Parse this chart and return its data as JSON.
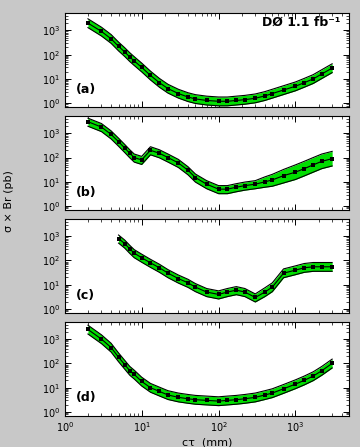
{
  "title_text": "DØ 1.1 fb⁻¹",
  "xlabel": "cτ  (mm)",
  "ylabel": "σ × Br (pb)",
  "xlim": [
    1,
    5000
  ],
  "panels": [
    "(a)",
    "(b)",
    "(c)",
    "(d)"
  ],
  "green_color": "#00dd00",
  "line_color": "#000000",
  "bg_color": "#c8c8c8",
  "plot_bg": "#ffffff",
  "panel_a": {
    "ylim": [
      0.7,
      5000
    ],
    "x": [
      2,
      3,
      4,
      5,
      6,
      7,
      8,
      10,
      13,
      17,
      22,
      30,
      40,
      50,
      70,
      100,
      130,
      170,
      220,
      300,
      400,
      500,
      700,
      1000,
      1300,
      1700,
      2200,
      3000
    ],
    "y": [
      2000,
      900,
      450,
      220,
      130,
      80,
      55,
      30,
      14,
      7,
      4,
      2.5,
      1.8,
      1.5,
      1.3,
      1.2,
      1.2,
      1.3,
      1.4,
      1.6,
      2.0,
      2.5,
      3.5,
      5,
      7,
      10,
      16,
      28
    ],
    "band_factor_up": [
      1.5,
      1.5,
      1.5,
      1.5,
      1.5,
      1.5,
      1.5,
      1.5,
      1.5,
      1.5,
      1.5,
      1.5,
      1.5,
      1.5,
      1.5,
      1.5,
      1.5,
      1.5,
      1.5,
      1.5,
      1.5,
      1.5,
      1.5,
      1.5,
      1.5,
      1.5,
      1.5,
      1.5
    ],
    "band_factor_dn": [
      0.65,
      0.65,
      0.65,
      0.65,
      0.65,
      0.65,
      0.65,
      0.65,
      0.65,
      0.65,
      0.65,
      0.65,
      0.65,
      0.65,
      0.65,
      0.65,
      0.65,
      0.65,
      0.65,
      0.65,
      0.65,
      0.65,
      0.65,
      0.65,
      0.65,
      0.65,
      0.65,
      0.65
    ]
  },
  "panel_b": {
    "ylim": [
      0.7,
      5000
    ],
    "x": [
      2,
      3,
      4,
      5,
      6,
      7,
      8,
      10,
      13,
      17,
      22,
      30,
      40,
      50,
      70,
      100,
      130,
      170,
      220,
      300,
      400,
      500,
      700,
      1000,
      1300,
      1700,
      2200,
      3000
    ],
    "y": [
      3000,
      1800,
      900,
      450,
      250,
      150,
      100,
      80,
      200,
      150,
      100,
      60,
      30,
      15,
      8,
      5,
      5,
      6,
      7,
      8,
      10,
      12,
      18,
      25,
      35,
      50,
      70,
      90
    ],
    "band_factor_up": [
      1.4,
      1.4,
      1.4,
      1.4,
      1.4,
      1.4,
      1.4,
      1.4,
      1.4,
      1.4,
      1.4,
      1.4,
      1.4,
      1.4,
      1.4,
      1.4,
      1.4,
      1.4,
      1.4,
      1.4,
      1.6,
      1.7,
      1.8,
      2.0,
      2.0,
      2.0,
      2.0,
      2.0
    ],
    "band_factor_dn": [
      0.65,
      0.65,
      0.65,
      0.65,
      0.65,
      0.65,
      0.65,
      0.65,
      0.65,
      0.65,
      0.65,
      0.65,
      0.65,
      0.65,
      0.65,
      0.65,
      0.65,
      0.65,
      0.65,
      0.65,
      0.6,
      0.55,
      0.5,
      0.5,
      0.5,
      0.5,
      0.5,
      0.5
    ]
  },
  "panel_c": {
    "ylim": [
      0.7,
      5000
    ],
    "x": [
      5,
      6,
      7,
      8,
      10,
      13,
      17,
      22,
      30,
      40,
      50,
      70,
      100,
      130,
      170,
      220,
      300,
      400,
      500,
      700,
      1000,
      1300,
      1700,
      2200,
      3000
    ],
    "y": [
      800,
      500,
      300,
      200,
      130,
      80,
      50,
      30,
      18,
      12,
      8,
      5,
      4,
      5,
      6,
      5,
      3,
      5,
      8,
      30,
      40,
      50,
      55,
      55,
      55
    ],
    "band_factor_up": [
      1.4,
      1.4,
      1.4,
      1.4,
      1.4,
      1.4,
      1.4,
      1.4,
      1.4,
      1.4,
      1.4,
      1.4,
      1.4,
      1.4,
      1.4,
      1.4,
      1.4,
      1.5,
      1.5,
      1.5,
      1.5,
      1.5,
      1.5,
      1.5,
      1.5
    ],
    "band_factor_dn": [
      0.65,
      0.65,
      0.65,
      0.65,
      0.65,
      0.65,
      0.65,
      0.65,
      0.65,
      0.65,
      0.65,
      0.65,
      0.65,
      0.65,
      0.65,
      0.65,
      0.65,
      0.65,
      0.65,
      0.65,
      0.65,
      0.65,
      0.65,
      0.65,
      0.65
    ]
  },
  "panel_d": {
    "ylim": [
      0.7,
      5000
    ],
    "x": [
      2,
      3,
      4,
      5,
      6,
      7,
      8,
      10,
      13,
      17,
      22,
      30,
      40,
      50,
      70,
      100,
      130,
      170,
      220,
      300,
      400,
      500,
      700,
      1000,
      1300,
      1700,
      2200,
      3000
    ],
    "y": [
      2500,
      1000,
      450,
      180,
      90,
      50,
      35,
      18,
      10,
      7,
      5,
      4,
      3.5,
      3.2,
      3.0,
      2.8,
      3.0,
      3.2,
      3.5,
      4,
      5,
      6,
      9,
      14,
      20,
      30,
      50,
      100
    ],
    "band_factor_up": [
      1.5,
      1.5,
      1.5,
      1.5,
      1.5,
      1.5,
      1.5,
      1.5,
      1.5,
      1.5,
      1.5,
      1.5,
      1.5,
      1.5,
      1.5,
      1.5,
      1.5,
      1.5,
      1.5,
      1.5,
      1.5,
      1.5,
      1.5,
      1.5,
      1.5,
      1.5,
      1.5,
      1.5
    ],
    "band_factor_dn": [
      0.65,
      0.65,
      0.65,
      0.65,
      0.65,
      0.65,
      0.65,
      0.65,
      0.65,
      0.65,
      0.65,
      0.65,
      0.65,
      0.65,
      0.65,
      0.65,
      0.65,
      0.65,
      0.65,
      0.65,
      0.65,
      0.65,
      0.65,
      0.65,
      0.65,
      0.65,
      0.65,
      0.65
    ]
  }
}
